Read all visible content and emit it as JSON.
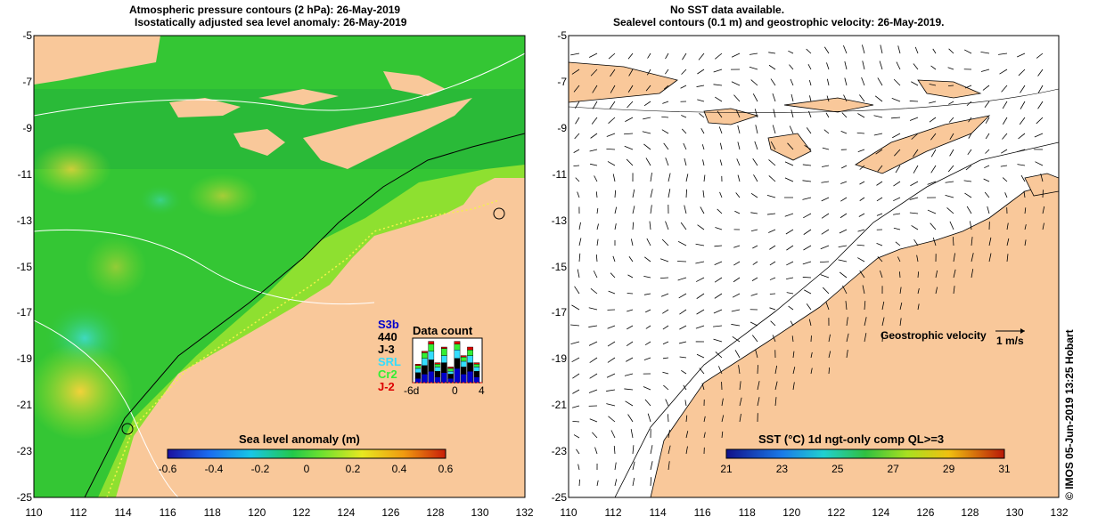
{
  "left_panel": {
    "title_line1": "Atmospheric pressure contours (2 hPa): 26-May-2019",
    "title_line2": "Isostatically adjusted sea level anomaly: 26-May-2019",
    "colorbar_title": "Sea level anomaly (m)",
    "colorbar_ticks": [
      "-0.6",
      "-0.4",
      "-0.2",
      "0",
      "0.2",
      "0.4",
      "0.6"
    ],
    "data_count": {
      "title": "Data count",
      "satellites": [
        {
          "name": "S3b",
          "color": "#0000cc"
        },
        {
          "name": "440",
          "color": "#000000"
        },
        {
          "name": "J-3",
          "color": "#000000"
        },
        {
          "name": "SRL",
          "color": "#33ddff"
        },
        {
          "name": "Cr2",
          "color": "#33ee33"
        },
        {
          "name": "J-2",
          "color": "#dd0000"
        }
      ],
      "x_ticks": [
        "-6d",
        "0",
        "4"
      ]
    }
  },
  "right_panel": {
    "title_line1": "No SST data available.",
    "title_line2": "Sealevel contours (0.1 m) and geostrophic velocity: 26-May-2019.",
    "velocity_label": "Geostrophic velocity",
    "velocity_scale": "1 m/s",
    "colorbar_title": "SST (°C) 1d ngt-only comp QL>=3",
    "colorbar_ticks": [
      "21",
      "23",
      "25",
      "27",
      "29",
      "31"
    ]
  },
  "axes": {
    "x_ticks": [
      "110",
      "112",
      "114",
      "116",
      "118",
      "120",
      "122",
      "124",
      "126",
      "128",
      "130",
      "132"
    ],
    "y_ticks": [
      "-5",
      "-7",
      "-9",
      "-11",
      "-13",
      "-15",
      "-17",
      "-19",
      "-21",
      "-23",
      "-25"
    ]
  },
  "stamp": "© IMOS 05-Jun-2019 13:25 Hobart",
  "colors": {
    "land": "#f9c89a",
    "ocean_green": "#3fcf33",
    "coast": "#000000"
  }
}
